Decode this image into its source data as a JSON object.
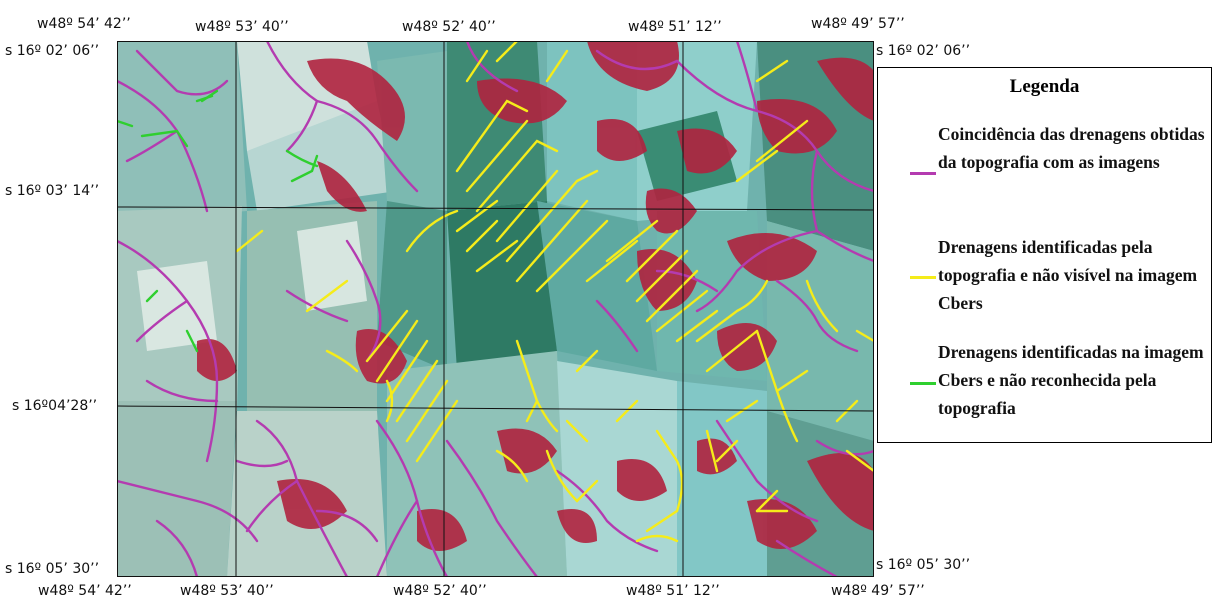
{
  "map": {
    "top_labels": [
      "w48º 54’ 42’’",
      "w48º 53’ 40’’",
      "w48º 52’ 40’’",
      "w48º 51’ 12’’",
      "w48º 49’ 57’’"
    ],
    "bottom_labels": [
      "w48º 54’ 42’’",
      "w48º 53’ 40’’",
      "w48º 52’ 40’’",
      "w48º 51’ 12’’",
      "w48º 49’ 57’’"
    ],
    "left_labels": [
      "s 16º 02’ 06’’",
      "s 16º 03’ 14’’",
      "s 16º04’28’’",
      "s 16º 05’ 30’’"
    ],
    "right_labels": [
      "s 16º 02’ 06’’",
      "s 16º 05’ 30’’"
    ],
    "colors": {
      "match_drainage": "#b43bb0",
      "topo_only": "#f5ec1a",
      "image_only": "#2fcf2f",
      "red_vegetation": "#b0233f",
      "cyan_field": "#7cc4c2",
      "dark_green": "#2e7a64"
    }
  },
  "legend": {
    "title": "Legenda",
    "items": [
      {
        "text": "Coincidência das drenagens obtidas da topografia com as imagens",
        "color": "#b43bb0"
      },
      {
        "text": "Drenagens identificadas pela topografia e não visível na imagem Cbers",
        "color": "#f5ec1a"
      },
      {
        "text": "Drenagens identificadas na imagem Cbers e não reconhecida pela topografia",
        "color": "#2fcf2f"
      }
    ]
  }
}
